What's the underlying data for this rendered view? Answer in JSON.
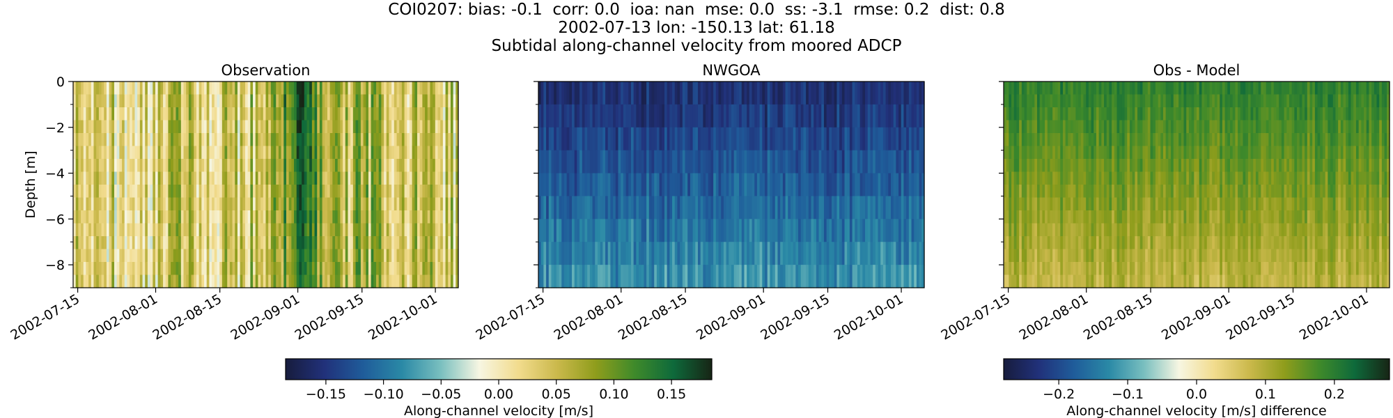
{
  "figure": {
    "title_lines": [
      "COI0207: bias: -0.1  corr: 0.0  ioa: nan  mse: 0.0  ss: -3.1  rmse: 0.2  dist: 0.8",
      "2002-07-13 lon: -150.13 lat: 61.18",
      "Subtidal along-channel velocity from moored ADCP"
    ]
  },
  "colors": {
    "cmap_stops": [
      "#171c3d",
      "#21317a",
      "#1f5c9a",
      "#2a89a6",
      "#79bfbf",
      "#f7f6e2",
      "#f2dc8e",
      "#cbb94c",
      "#8f9d1c",
      "#3f8a2a",
      "#0e6a3b",
      "#172515"
    ]
  },
  "chart_data": [
    {
      "type": "heatmap",
      "title": "Observation",
      "ylabel": "Depth [m]",
      "y_ticks": [
        0,
        -2,
        -4,
        -6,
        -8
      ],
      "ylim": [
        -9,
        0
      ],
      "x_ticks": [
        "2002-07-15",
        "2002-08-01",
        "2002-08-15",
        "2002-09-01",
        "2002-09-15",
        "2002-10-01"
      ],
      "xlim": [
        "2002-07-14",
        "2002-10-06"
      ],
      "depth_levels": 16,
      "color_range": [
        -0.185,
        0.185
      ],
      "value_profile": {
        "time_dates": [
          "2002-07-14",
          "2002-07-20",
          "2002-07-28",
          "2002-08-05",
          "2002-08-12",
          "2002-08-22",
          "2002-08-28",
          "2002-09-02",
          "2002-09-08",
          "2002-09-15",
          "2002-09-25",
          "2002-10-06"
        ],
        "values_ms": [
          0.04,
          0.03,
          0.02,
          0.04,
          0.05,
          0.04,
          0.06,
          0.12,
          0.07,
          0.06,
          0.05,
          0.04
        ]
      }
    },
    {
      "type": "heatmap",
      "title": "NWGOA",
      "y_ticks": [
        0,
        -2,
        -4,
        -6,
        -8
      ],
      "ylim": [
        -9,
        0
      ],
      "x_ticks": [
        "2002-07-15",
        "2002-08-01",
        "2002-08-15",
        "2002-09-01",
        "2002-09-15",
        "2002-10-01"
      ],
      "xlim": [
        "2002-07-14",
        "2002-10-06"
      ],
      "depth_levels": 9,
      "color_range": [
        -0.185,
        0.185
      ],
      "surface_values_ms": [
        -0.17,
        -0.14
      ],
      "deep_values_ms": [
        -0.1,
        -0.06
      ]
    },
    {
      "type": "heatmap",
      "title": "Obs - Model",
      "y_ticks": [
        0,
        -2,
        -4,
        -6,
        -8
      ],
      "ylim": [
        -9,
        0
      ],
      "x_ticks": [
        "2002-07-15",
        "2002-08-01",
        "2002-08-15",
        "2002-09-01",
        "2002-09-15",
        "2002-10-01"
      ],
      "xlim": [
        "2002-07-14",
        "2002-10-06"
      ],
      "depth_levels": 16,
      "color_range": [
        -0.28,
        0.28
      ],
      "surface_values_ms": [
        0.17,
        0.22
      ],
      "deep_values_ms": [
        0.06,
        0.12
      ]
    }
  ],
  "colorbars": [
    {
      "label": "Along-channel velocity [m/s]",
      "ticks": [
        "−0.15",
        "−0.10",
        "−0.05",
        "0.00",
        "0.05",
        "0.10",
        "0.15"
      ],
      "tick_values": [
        -0.15,
        -0.1,
        -0.05,
        0,
        0.05,
        0.1,
        0.15
      ],
      "range": [
        -0.185,
        0.185
      ]
    },
    {
      "label": "Along-channel velocity [m/s] difference",
      "ticks": [
        "−0.2",
        "−0.1",
        "0.0",
        "0.1",
        "0.2"
      ],
      "tick_values": [
        -0.2,
        -0.1,
        0,
        0.1,
        0.2
      ],
      "range": [
        -0.28,
        0.28
      ]
    }
  ]
}
